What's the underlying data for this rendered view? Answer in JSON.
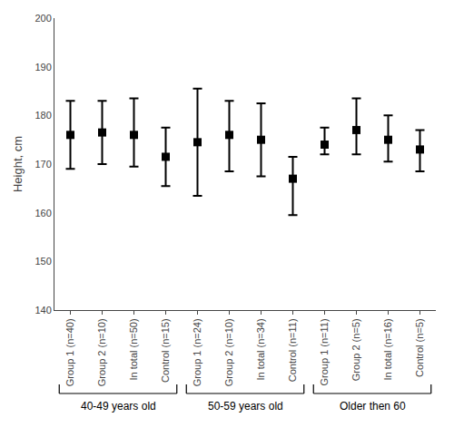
{
  "chart_data": {
    "type": "scatter",
    "ylabel": "Height, cm",
    "categories": [
      "Group 1 (n=40)",
      "Group 2 (n=10)",
      "In total (n=50)",
      "Control (n=15)",
      "Group 1 (n=24)",
      "Group 2 (n=10)",
      "In total (n=34)",
      "Control (n=11)",
      "Group 1 (n=11)",
      "Group 2 (n=5)",
      "In total (n=16)",
      "Control (n=5)"
    ],
    "values": [
      176.0,
      176.5,
      176.0,
      171.5,
      174.5,
      176.0,
      175.0,
      167.0,
      174.0,
      177.0,
      175.0,
      173.0
    ],
    "error_upper": [
      7.0,
      6.5,
      7.5,
      6.0,
      11.0,
      7.0,
      7.5,
      4.5,
      3.5,
      6.5,
      5.0,
      4.0
    ],
    "error_lower": [
      7.0,
      6.5,
      6.5,
      6.0,
      11.0,
      7.5,
      7.5,
      7.5,
      2.0,
      5.0,
      4.5,
      4.5
    ],
    "color": "#000000",
    "marker": "square",
    "ylim": [
      140,
      200
    ],
    "yticks": [
      140,
      150,
      160,
      170,
      180,
      190,
      200
    ],
    "grid": false,
    "group_labels": [
      "40-49 years old",
      "50-59 years old",
      "Older then 60"
    ],
    "group_spans": [
      [
        0,
        3
      ],
      [
        4,
        7
      ],
      [
        8,
        11
      ]
    ]
  }
}
